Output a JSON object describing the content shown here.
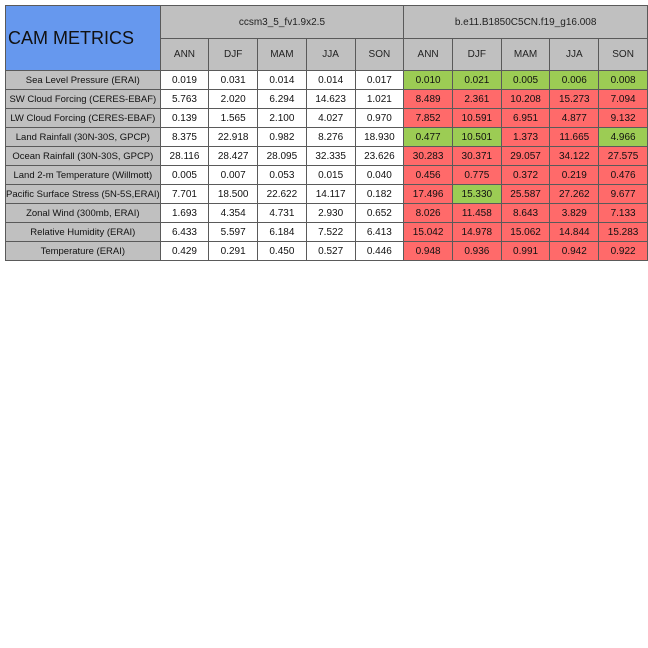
{
  "table": {
    "title": "CAM METRICS",
    "cases": [
      "ccsm3_5_fv1.9x2.5",
      "b.e11.B1850C5CN.f19_g16.008"
    ],
    "seasons": [
      "ANN",
      "DJF",
      "MAM",
      "JJA",
      "SON"
    ],
    "colors": {
      "red": "#ff6a6a",
      "green": "#9ccc54",
      "white": "#ffffff",
      "header": "#c0c0c0",
      "title": "#6698ee"
    },
    "rows": [
      {
        "label": "Sea Level Pressure (ERAI)",
        "case1": [
          "0.019",
          "0.031",
          "0.014",
          "0.014",
          "0.017"
        ],
        "case2": [
          "0.010",
          "0.021",
          "0.005",
          "0.006",
          "0.008"
        ],
        "case2_status": [
          "green",
          "green",
          "green",
          "green",
          "green"
        ]
      },
      {
        "label": "SW Cloud Forcing (CERES-EBAF)",
        "case1": [
          "5.763",
          "2.020",
          "6.294",
          "14.623",
          "1.021"
        ],
        "case2": [
          "8.489",
          "2.361",
          "10.208",
          "15.273",
          "7.094"
        ],
        "case2_status": [
          "red",
          "red",
          "red",
          "red",
          "red"
        ]
      },
      {
        "label": "LW Cloud Forcing (CERES-EBAF)",
        "case1": [
          "0.139",
          "1.565",
          "2.100",
          "4.027",
          "0.970"
        ],
        "case2": [
          "7.852",
          "10.591",
          "6.951",
          "4.877",
          "9.132"
        ],
        "case2_status": [
          "red",
          "red",
          "red",
          "red",
          "red"
        ]
      },
      {
        "label": "Land Rainfall (30N-30S, GPCP)",
        "case1": [
          "8.375",
          "22.918",
          "0.982",
          "8.276",
          "18.930"
        ],
        "case2": [
          "0.477",
          "10.501",
          "1.373",
          "11.665",
          "4.966"
        ],
        "case2_status": [
          "green",
          "green",
          "red",
          "red",
          "green"
        ]
      },
      {
        "label": "Ocean Rainfall (30N-30S, GPCP)",
        "case1": [
          "28.116",
          "28.427",
          "28.095",
          "32.335",
          "23.626"
        ],
        "case2": [
          "30.283",
          "30.371",
          "29.057",
          "34.122",
          "27.575"
        ],
        "case2_status": [
          "red",
          "red",
          "red",
          "red",
          "red"
        ]
      },
      {
        "label": "Land 2-m Temperature (Willmott)",
        "case1": [
          "0.005",
          "0.007",
          "0.053",
          "0.015",
          "0.040"
        ],
        "case2": [
          "0.456",
          "0.775",
          "0.372",
          "0.219",
          "0.476"
        ],
        "case2_status": [
          "red",
          "red",
          "red",
          "red",
          "red"
        ]
      },
      {
        "label": "Pacific Surface Stress (5N-5S,ERAI)",
        "case1": [
          "7.701",
          "18.500",
          "22.622",
          "14.117",
          "0.182"
        ],
        "case2": [
          "17.496",
          "15.330",
          "25.587",
          "27.262",
          "9.677"
        ],
        "case2_status": [
          "red",
          "green",
          "red",
          "red",
          "red"
        ]
      },
      {
        "label": "Zonal Wind (300mb, ERAI)",
        "case1": [
          "1.693",
          "4.354",
          "4.731",
          "2.930",
          "0.652"
        ],
        "case2": [
          "8.026",
          "11.458",
          "8.643",
          "3.829",
          "7.133"
        ],
        "case2_status": [
          "red",
          "red",
          "red",
          "red",
          "red"
        ]
      },
      {
        "label": "Relative Humidity (ERAI)",
        "case1": [
          "6.433",
          "5.597",
          "6.184",
          "7.522",
          "6.413"
        ],
        "case2": [
          "15.042",
          "14.978",
          "15.062",
          "14.844",
          "15.283"
        ],
        "case2_status": [
          "red",
          "red",
          "red",
          "red",
          "red"
        ]
      },
      {
        "label": "Temperature (ERAI)",
        "case1": [
          "0.429",
          "0.291",
          "0.450",
          "0.527",
          "0.446"
        ],
        "case2": [
          "0.948",
          "0.936",
          "0.991",
          "0.942",
          "0.922"
        ],
        "case2_status": [
          "red",
          "red",
          "red",
          "red",
          "red"
        ]
      }
    ]
  }
}
